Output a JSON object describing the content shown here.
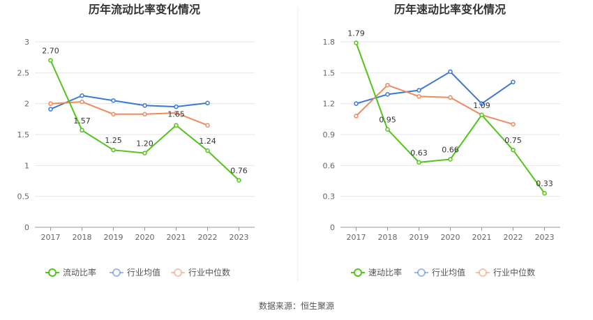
{
  "source_label": "数据来源：恒生聚源",
  "chart_data": [
    {
      "type": "line",
      "title": "历年流动比率变化情况",
      "categories": [
        "2017",
        "2018",
        "2019",
        "2020",
        "2021",
        "2022",
        "2023"
      ],
      "ylim": [
        0,
        3
      ],
      "yticks": [
        "0",
        "0.5",
        "1",
        "1.5",
        "2",
        "2.5",
        "3"
      ],
      "grid": true,
      "legend_position": "bottom",
      "series": [
        {
          "name": "流动比率",
          "color": "#52c41a",
          "values": [
            2.7,
            1.57,
            1.25,
            1.2,
            1.65,
            1.24,
            0.76
          ],
          "labels": [
            "2.70",
            "1.57",
            "1.25",
            "1.20",
            "1.65",
            "1.24",
            "0.76"
          ]
        },
        {
          "name": "行业均值",
          "color": "#3a78d8",
          "values": [
            1.91,
            2.13,
            2.05,
            1.97,
            1.95,
            2.01,
            null
          ]
        },
        {
          "name": "行业中位数",
          "color": "#f08a5d",
          "values": [
            2.0,
            2.03,
            1.83,
            1.83,
            1.85,
            1.65,
            null
          ]
        }
      ]
    },
    {
      "type": "line",
      "title": "历年速动比率变化情况",
      "categories": [
        "2017",
        "2018",
        "2019",
        "2020",
        "2021",
        "2022",
        "2023"
      ],
      "ylim": [
        0,
        1.8
      ],
      "yticks": [
        "0",
        "0.3",
        "0.6",
        "0.9",
        "1.2",
        "1.5",
        "1.8"
      ],
      "grid": true,
      "legend_position": "bottom",
      "series": [
        {
          "name": "速动比率",
          "color": "#52c41a",
          "values": [
            1.79,
            0.95,
            0.63,
            0.66,
            1.09,
            0.75,
            0.33
          ],
          "labels": [
            "1.79",
            "0.95",
            "0.63",
            "0.66",
            "1.09",
            "0.75",
            "0.33"
          ]
        },
        {
          "name": "行业均值",
          "color": "#3a78d8",
          "values": [
            1.2,
            1.29,
            1.33,
            1.51,
            1.2,
            1.41,
            null
          ]
        },
        {
          "name": "行业中位数",
          "color": "#f08a5d",
          "values": [
            1.08,
            1.38,
            1.27,
            1.26,
            1.09,
            1.0,
            null
          ]
        }
      ]
    }
  ]
}
